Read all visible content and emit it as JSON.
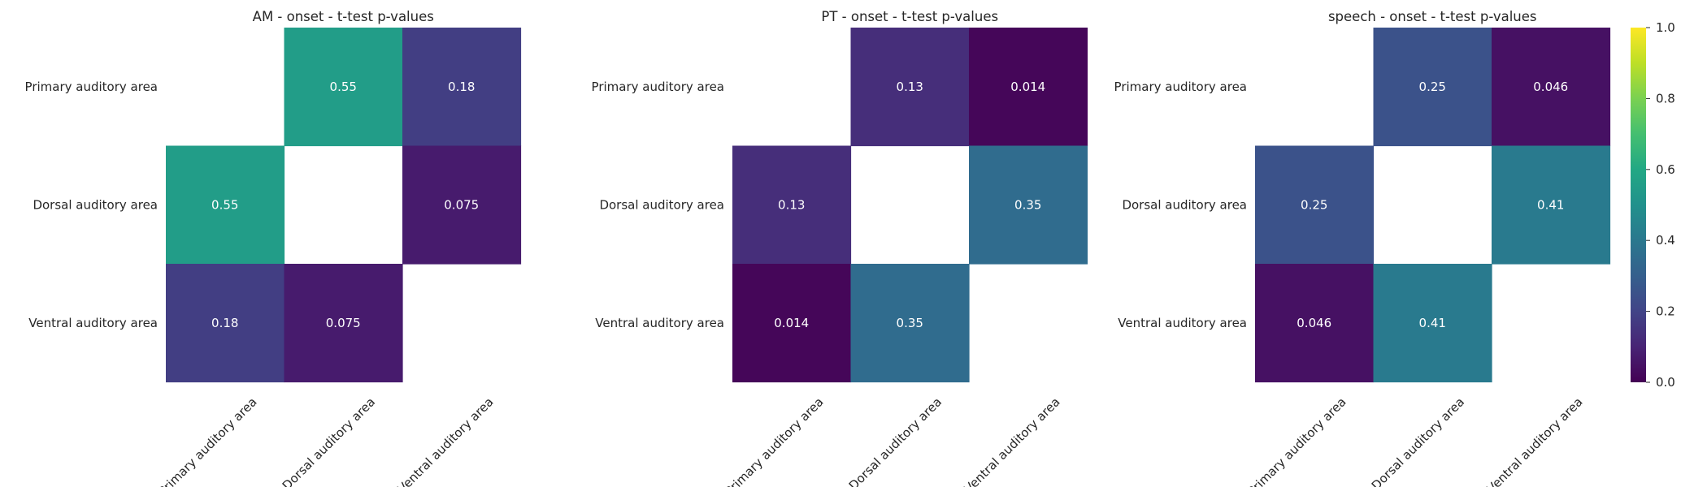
{
  "chart_data": [
    {
      "type": "heatmap",
      "title": "AM - onset - t-test p-values",
      "rows": [
        "Primary auditory area",
        "Dorsal auditory area",
        "Ventral auditory area"
      ],
      "columns": [
        "Primary auditory area",
        "Dorsal auditory area",
        "Ventral auditory area"
      ],
      "values": [
        [
          null,
          0.55,
          0.18
        ],
        [
          0.55,
          null,
          0.075
        ],
        [
          0.18,
          0.075,
          null
        ]
      ],
      "labels": [
        [
          "",
          "0.55",
          "0.18"
        ],
        [
          "0.55",
          "",
          "0.075"
        ],
        [
          "0.18",
          "0.075",
          ""
        ]
      ]
    },
    {
      "type": "heatmap",
      "title": "PT - onset - t-test p-values",
      "rows": [
        "Primary auditory area",
        "Dorsal auditory area",
        "Ventral auditory area"
      ],
      "columns": [
        "Primary auditory area",
        "Dorsal auditory area",
        "Ventral auditory area"
      ],
      "values": [
        [
          null,
          0.13,
          0.014
        ],
        [
          0.13,
          null,
          0.35
        ],
        [
          0.014,
          0.35,
          null
        ]
      ],
      "labels": [
        [
          "",
          "0.13",
          "0.014"
        ],
        [
          "0.13",
          "",
          "0.35"
        ],
        [
          "0.014",
          "0.35",
          ""
        ]
      ]
    },
    {
      "type": "heatmap",
      "title": "speech - onset - t-test p-values",
      "rows": [
        "Primary auditory area",
        "Dorsal auditory area",
        "Ventral auditory area"
      ],
      "columns": [
        "Primary auditory area",
        "Dorsal auditory area",
        "Ventral auditory area"
      ],
      "values": [
        [
          null,
          0.25,
          0.046
        ],
        [
          0.25,
          null,
          0.41
        ],
        [
          0.046,
          0.41,
          null
        ]
      ],
      "labels": [
        [
          "",
          "0.25",
          "0.046"
        ],
        [
          "0.25",
          "",
          "0.41"
        ],
        [
          "0.046",
          "0.41",
          ""
        ]
      ]
    }
  ],
  "colorbar": {
    "colormap": "viridis",
    "range": [
      0.0,
      1.0
    ],
    "ticks": [
      "0.0",
      "0.2",
      "0.4",
      "0.6",
      "0.8",
      "1.0"
    ],
    "tick_values": [
      0.0,
      0.2,
      0.4,
      0.6,
      0.8,
      1.0
    ]
  }
}
